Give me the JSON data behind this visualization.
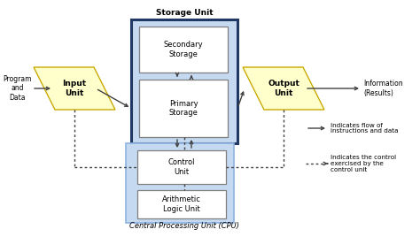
{
  "bg_color": "#ffffff",
  "light_blue": "#c5d9f1",
  "dark_blue_border": "#1f3864",
  "cpu_border": "#8db3e2",
  "box_white": "#ffffff",
  "box_border": "#7f7f7f",
  "parallelogram_fill": "#ffffcc",
  "parallelogram_stroke": "#c9a800",
  "text_color": "#000000",
  "arrow_color": "#404040",
  "title": "Storage Unit",
  "cpu_label": "Central Processing Unit (CPU)",
  "legend1": "Indicates flow of\ninstructions and data",
  "legend2": "Indicates the control\nexercised by the\ncontrol unit",
  "program_label": "Program\nand\nData",
  "info_label": "Information\n(Results)",
  "input_label": "Input\nUnit",
  "output_label": "Output\nUnit",
  "secondary_label": "Secondary\nStorage",
  "primary_label": "Primary\nStorage",
  "control_label": "Control\nUnit",
  "alu_label": "Arithmetic\nLogic Unit",
  "fig_w": 4.74,
  "fig_h": 2.68,
  "dpi": 100
}
